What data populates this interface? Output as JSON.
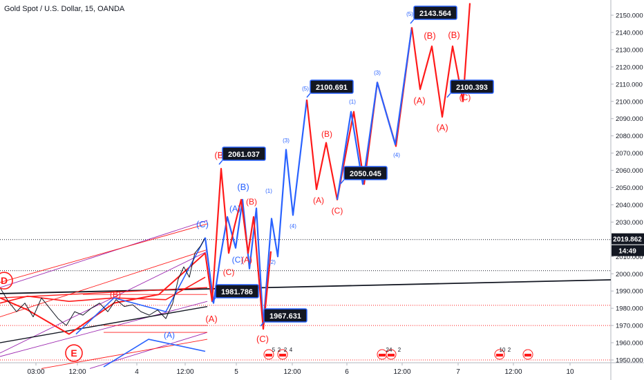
{
  "chart_data": {
    "type": "line",
    "title": "Gold Spot / U.S. Dollar, 15, OANDA",
    "ylim": [
      1947,
      2157
    ],
    "y_ticks": [
      1950,
      1960,
      1970,
      1980,
      1990,
      2000,
      2010,
      2020,
      2030,
      2040,
      2050,
      2060,
      2070,
      2080,
      2090,
      2100,
      2110,
      2120,
      2130,
      2140,
      2150
    ],
    "y_tick_labels": [
      "1950.000",
      "1960.000",
      "1970.000",
      "1980.000",
      "1990.000",
      "2000.000",
      "2010.000",
      "2020.000",
      "2030.000",
      "2040.000",
      "2050.000",
      "2060.000",
      "2070.000",
      "2080.000",
      "2090.000",
      "2100.000",
      "2110.000",
      "2120.000",
      "2130.000",
      "2140.000",
      "2150.000"
    ],
    "x_ticks": [
      "03:00",
      "12:00",
      "4",
      "12:00",
      "5",
      "12:00",
      "6",
      "12:00",
      "7",
      "12:00",
      "10"
    ],
    "current_price": {
      "label": "2019.862",
      "value": 2019.862,
      "color": "#131722"
    },
    "countdown": {
      "label": "14:49"
    },
    "grid": false,
    "colors": {
      "blue": "#2962ff",
      "red": "#ff1a1a",
      "black": "#131722",
      "purple": "#9c27b0"
    },
    "price_labels": [
      {
        "text": "2061.037",
        "value": 2061.037
      },
      {
        "text": "1981.786",
        "value": 1981.786
      },
      {
        "text": "1967.631",
        "value": 1967.631
      },
      {
        "text": "2100.691",
        "value": 2100.691
      },
      {
        "text": "2050.045",
        "value": 2050.045
      },
      {
        "text": "2143.564",
        "value": 2143.564
      },
      {
        "text": "2100.393",
        "value": 2100.393
      }
    ],
    "wave_labels": [
      {
        "text": "(C)",
        "color": "blue"
      },
      {
        "text": "(A)",
        "color": "blue"
      },
      {
        "text": "(B)",
        "color": "blue"
      },
      {
        "text": "(C)",
        "color": "blue"
      },
      {
        "text": "(1)",
        "color": "blue"
      },
      {
        "text": "(2)",
        "color": "blue"
      },
      {
        "text": "(3)",
        "color": "blue"
      },
      {
        "text": "(4)",
        "color": "blue"
      },
      {
        "text": "(5)",
        "color": "blue"
      },
      {
        "text": "(1)",
        "color": "blue"
      },
      {
        "text": "(3)",
        "color": "blue"
      },
      {
        "text": "(4)",
        "color": "blue"
      },
      {
        "text": "(5)",
        "color": "blue"
      },
      {
        "text": "(B)",
        "color": "red"
      },
      {
        "text": "(C)",
        "color": "red"
      },
      {
        "text": "(A)",
        "color": "red"
      },
      {
        "text": "(B)",
        "color": "red"
      },
      {
        "text": "(A)",
        "color": "red"
      },
      {
        "text": "(C)",
        "color": "red"
      },
      {
        "text": "(A)",
        "color": "red"
      },
      {
        "text": "(B)",
        "color": "red"
      },
      {
        "text": "(C)",
        "color": "red"
      },
      {
        "text": "(A)",
        "color": "red"
      },
      {
        "text": "(B)",
        "color": "red"
      },
      {
        "text": "(B)",
        "color": "red"
      },
      {
        "text": "(A)",
        "color": "red"
      },
      {
        "text": "(C)",
        "color": "red"
      },
      {
        "text": "(B)",
        "color": "red"
      },
      {
        "text": "(A)",
        "color": "blue"
      },
      {
        "text": "(B)",
        "color": "blue"
      }
    ],
    "circle_labels": [
      {
        "text": "D",
        "color": "red"
      },
      {
        "text": "E",
        "color": "red"
      }
    ],
    "event_labels": [
      "5",
      "2",
      "2",
      "4",
      "24",
      "2",
      "10",
      "2"
    ],
    "series": [
      {
        "color": "blue",
        "points": [
          [
            297,
            2021
          ],
          [
            309,
            1983
          ],
          [
            319,
            2010
          ],
          [
            329,
            2033
          ],
          [
            341,
            2015
          ],
          [
            351,
            2043
          ],
          [
            361,
            2003
          ],
          [
            371,
            2038
          ],
          [
            381,
            1970
          ],
          [
            393,
            2032
          ],
          [
            402,
            2010
          ],
          [
            414,
            2072
          ],
          [
            424,
            2034
          ],
          [
            444,
            2101
          ]
        ]
      },
      {
        "color": "red",
        "points": [
          [
            297,
            2012
          ],
          [
            307,
            1984
          ],
          [
            320,
            2061
          ],
          [
            331,
            2012
          ],
          [
            339,
            2027
          ],
          [
            349,
            2043
          ],
          [
            359,
            2012
          ],
          [
            367,
            2033
          ],
          [
            381,
            1968
          ],
          [
            392,
            2013
          ]
        ]
      },
      {
        "color": "red",
        "points": [
          [
            444,
            2101
          ],
          [
            458,
            2049
          ],
          [
            472,
            2076
          ],
          [
            488,
            2043
          ],
          [
            502,
            2073
          ],
          [
            512,
            2094
          ],
          [
            527,
            2052
          ],
          [
            546,
            2111
          ],
          [
            573,
            2074
          ],
          [
            596,
            2143
          ]
        ]
      },
      {
        "color": "blue",
        "points": [
          [
            488,
            2043
          ],
          [
            508,
            2094
          ],
          [
            525,
            2052
          ],
          [
            546,
            2111
          ],
          [
            572,
            2075
          ],
          [
            596,
            2143
          ]
        ]
      },
      {
        "color": "red",
        "points": [
          [
            596,
            2143
          ],
          [
            608,
            2107
          ],
          [
            625,
            2132
          ],
          [
            640,
            2091
          ],
          [
            655,
            2132
          ],
          [
            670,
            2100
          ],
          [
            680,
            2157
          ]
        ]
      }
    ],
    "history": {
      "color": "black",
      "points": [
        [
          0,
          1992
        ],
        [
          12,
          1984
        ],
        [
          24,
          1978
        ],
        [
          36,
          1983
        ],
        [
          48,
          1975
        ],
        [
          60,
          1986
        ],
        [
          72,
          1980
        ],
        [
          84,
          1974
        ],
        [
          96,
          1970
        ],
        [
          108,
          1978
        ],
        [
          120,
          1976
        ],
        [
          132,
          1980
        ],
        [
          144,
          1983
        ],
        [
          156,
          1978
        ],
        [
          168,
          1985
        ],
        [
          180,
          1981
        ],
        [
          192,
          1982
        ],
        [
          204,
          1978
        ],
        [
          216,
          1976
        ],
        [
          228,
          1979
        ],
        [
          240,
          1974
        ],
        [
          250,
          1983
        ],
        [
          258,
          1997
        ],
        [
          266,
          2004
        ],
        [
          274,
          1998
        ],
        [
          282,
          2012
        ],
        [
          290,
          2016
        ],
        [
          297,
          2021
        ]
      ]
    }
  }
}
